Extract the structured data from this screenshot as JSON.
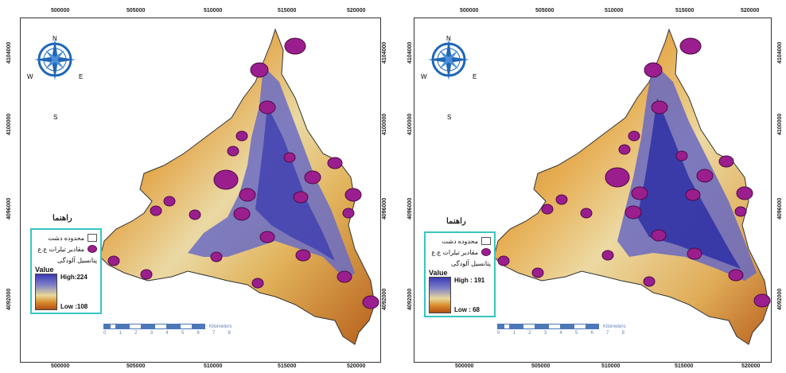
{
  "x_ticks": [
    "500000",
    "505000",
    "510000",
    "515000",
    "520000"
  ],
  "y_ticks": [
    "4104000",
    "4100000",
    "4096000",
    "4092000"
  ],
  "compass": {
    "n": "N",
    "s": "S",
    "e": "E",
    "w": "W"
  },
  "scalebar": {
    "numbers": [
      "0",
      "1",
      "2",
      "3",
      "4",
      "5",
      "6",
      "7",
      "8"
    ],
    "unit": "Kilometers"
  },
  "maps": [
    {
      "legend_title": "راهنما",
      "boundary_label": "محدوده دشت",
      "wells_label": "مقادیر تیلرات ﻉ.ﻉ",
      "potential_label": "پتانسیل آلودگی",
      "value_label": "Value",
      "high_label": "High:224",
      "low_label": "Low :108"
    },
    {
      "legend_title": "راهنما",
      "boundary_label": "محدوده دشت",
      "wells_label": "مقادیر تیلرات ﻉ.ﻉ",
      "potential_label": "پتانسیل آلودگی",
      "value_label": "Value",
      "high_label": "High : 191",
      "low_label": "Low : 68"
    }
  ],
  "colors": {
    "high": "#3a3ab6",
    "mid": "#e8d99a",
    "low": "#b14f16",
    "well": "#9b1e8e",
    "legend_border": "#37c6c0"
  }
}
